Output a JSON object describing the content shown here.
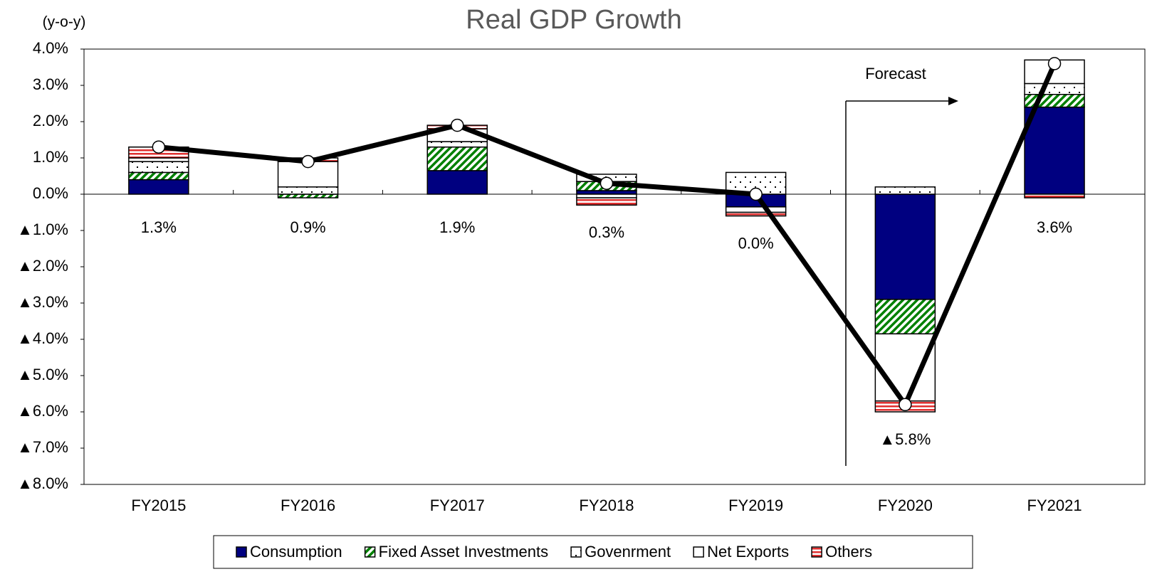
{
  "chart_data": {
    "type": "bar",
    "title": "Real GDP Growth",
    "y_label": "(y-o-y)",
    "annotation": "Forecast",
    "categories": [
      "FY2015",
      "FY2016",
      "FY2017",
      "FY2018",
      "FY2019",
      "FY2020",
      "FY2021"
    ],
    "series": [
      {
        "name": "Consumption",
        "color": "#000080",
        "pattern": "solid",
        "values": [
          0.4,
          0.0,
          0.65,
          0.1,
          -0.35,
          -2.9,
          2.4
        ]
      },
      {
        "name": "Fixed Asset Investments",
        "color": "#008000",
        "pattern": "diagonal",
        "values": [
          0.2,
          -0.1,
          0.65,
          0.25,
          0.0,
          -0.95,
          0.35
        ]
      },
      {
        "name": "Govenrment",
        "color": "#000000",
        "pattern": "dots",
        "values": [
          0.3,
          0.2,
          0.15,
          0.2,
          0.6,
          0.2,
          0.3
        ]
      },
      {
        "name": "Net Exports",
        "color": "#ffffff",
        "pattern": "solid",
        "values": [
          0.1,
          0.7,
          0.35,
          -0.1,
          -0.15,
          -1.85,
          0.65
        ]
      },
      {
        "name": "Others",
        "color": "#e03030",
        "pattern": "stripes",
        "values": [
          0.3,
          0.1,
          0.1,
          -0.2,
          -0.1,
          -0.3,
          -0.1
        ]
      }
    ],
    "line": {
      "color": "#000000",
      "values": [
        1.3,
        0.9,
        1.9,
        0.3,
        0.0,
        -5.8,
        3.6
      ],
      "value_labels": [
        "1.3%",
        "0.9%",
        "1.9%",
        "0.3%",
        "0.0%",
        "▲5.8%",
        "3.6%"
      ]
    },
    "ylim": [
      -8,
      4
    ],
    "yticks": [
      {
        "value": 4,
        "label": "4.0%"
      },
      {
        "value": 3,
        "label": "3.0%"
      },
      {
        "value": 2,
        "label": "2.0%"
      },
      {
        "value": 1,
        "label": "1.0%"
      },
      {
        "value": 0,
        "label": "0.0%"
      },
      {
        "value": -1,
        "label": "▲1.0%"
      },
      {
        "value": -2,
        "label": "▲2.0%"
      },
      {
        "value": -3,
        "label": "▲3.0%"
      },
      {
        "value": -4,
        "label": "▲4.0%"
      },
      {
        "value": -5,
        "label": "▲5.0%"
      },
      {
        "value": -6,
        "label": "▲6.0%"
      },
      {
        "value": -7,
        "label": "▲7.0%"
      },
      {
        "value": -8,
        "label": "▲8.0%"
      }
    ],
    "forecast_from": "FY2020",
    "legend": "bottom"
  }
}
